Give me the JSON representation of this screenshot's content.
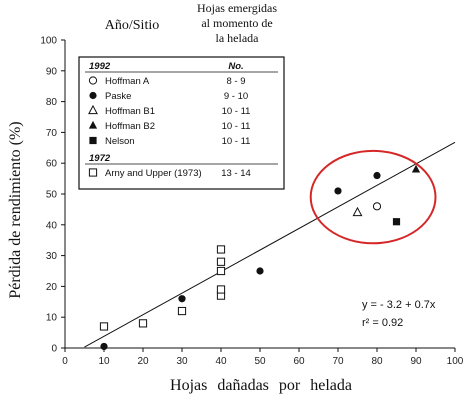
{
  "chart_data": {
    "type": "scatter",
    "ylabel": "Pérdida de rendimiento (%)",
    "xlabel": "Hojas dañadas por helada",
    "xlim": [
      0,
      100
    ],
    "ylim": [
      0,
      100
    ],
    "x_ticks": [
      0,
      10,
      20,
      30,
      40,
      50,
      60,
      70,
      80,
      90,
      100
    ],
    "y_ticks": [
      0,
      10,
      20,
      30,
      40,
      50,
      60,
      70,
      80,
      90,
      100
    ],
    "grid": false,
    "legend_headers": {
      "col_site": "Año/Sitio",
      "col_leaves": "Hojas emergidas al momento de la helada"
    },
    "legend": {
      "placement": "top-left",
      "groups": [
        {
          "year": "1992",
          "no_label": "No.",
          "entries": [
            {
              "series_index": 0,
              "label": "Hoffman A",
              "leaves": "8 - 9"
            },
            {
              "series_index": 1,
              "label": "Paske",
              "leaves": "9 - 10"
            },
            {
              "series_index": 2,
              "label": "Hoffman B1",
              "leaves": "10 - 11"
            },
            {
              "series_index": 3,
              "label": "Hoffman B2",
              "leaves": "10 - 11"
            },
            {
              "series_index": 4,
              "label": "Nelson",
              "leaves": "10 - 11"
            }
          ]
        },
        {
          "year": "1972",
          "entries": [
            {
              "series_index": 5,
              "label": "Arny and Upper (1973)",
              "leaves": "13 - 14"
            }
          ]
        }
      ]
    },
    "series": [
      {
        "name": "Hoffman A",
        "marker": "open-circle",
        "points": [
          [
            80,
            46
          ]
        ]
      },
      {
        "name": "Paske",
        "marker": "filled-circle",
        "points": [
          [
            10,
            0.5
          ],
          [
            30,
            16
          ],
          [
            50,
            25
          ],
          [
            70,
            51
          ],
          [
            80,
            56
          ]
        ]
      },
      {
        "name": "Hoffman B1",
        "marker": "open-triangle",
        "points": [
          [
            75,
            44
          ]
        ]
      },
      {
        "name": "Hoffman B2",
        "marker": "filled-triangle",
        "points": [
          [
            90,
            58
          ]
        ]
      },
      {
        "name": "Nelson",
        "marker": "filled-square",
        "points": [
          [
            85,
            41
          ]
        ]
      },
      {
        "name": "Arny and Upper (1973)",
        "marker": "open-square",
        "points": [
          [
            10,
            7
          ],
          [
            20,
            8
          ],
          [
            30,
            12
          ],
          [
            40,
            17
          ],
          [
            40,
            19
          ],
          [
            40,
            25
          ],
          [
            40,
            28
          ],
          [
            40,
            32
          ]
        ]
      }
    ],
    "regression": {
      "x_range": [
        5,
        100
      ],
      "intercept": -3.2,
      "slope": 0.7,
      "equation": "y = - 3.2 + 0.7x",
      "r2": "r² = 0.92"
    },
    "annotation": {
      "shape": "ellipse",
      "color": "#d62728",
      "center": [
        79,
        49
      ],
      "radius": [
        16,
        15
      ]
    }
  }
}
